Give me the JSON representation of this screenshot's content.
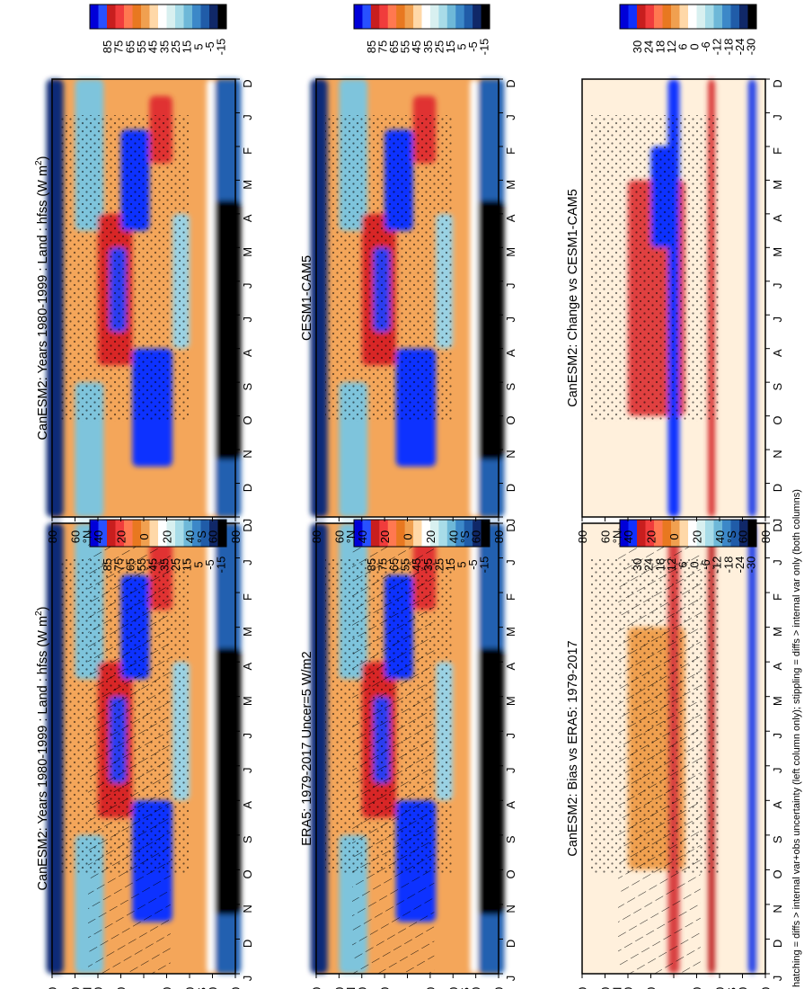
{
  "figure": {
    "footnote": "hatching = diffs > internal var+obs uncertainty (left column only); stippling = diffs > internal var only (both columns)",
    "rotation": "90 degrees clockwise (portrait page of landscape panels)"
  },
  "chart_data": [
    {
      "type": "heatmap",
      "title": "CanESM2: Years 1980-1999 : Land : hfss (W m²)",
      "title_main": "CanESM2: Years 1980-1999 : Land : hfss (W m",
      "title_sup": "2",
      "title_end": ")",
      "variable": "hfss",
      "units": "W m-2",
      "x": [
        "D",
        "J",
        "F",
        "M",
        "A",
        "M",
        "J",
        "J",
        "A",
        "S",
        "O",
        "N",
        "D",
        "J"
      ],
      "y_ticks": [
        "80",
        "60",
        "40",
        "20",
        "0",
        "20",
        "40",
        "60",
        "80"
      ],
      "y_hemi_labels": [
        "°N",
        "°S"
      ],
      "colorbar": {
        "ticks": [
          85,
          75,
          65,
          55,
          45,
          35,
          25,
          15,
          5,
          -5,
          -15
        ],
        "colors": [
          "#0000d8",
          "#2850ff",
          "#c81e1e",
          "#f03c3c",
          "#ff7850",
          "#e87820",
          "#f0a050",
          "#ffd8a8",
          "#ffffff",
          "#d8f0f0",
          "#a8dce8",
          "#6eb8d8",
          "#3c88c8",
          "#205ca8",
          "#102868",
          "#000000"
        ]
      },
      "overlays": [
        "hatching",
        "stippling"
      ]
    },
    {
      "type": "heatmap",
      "title": "CanESM2: Years 1980-1999 : Land : hfss (W m²)",
      "title_main": "CanESM2: Years 1980-1999 : Land : hfss (W m",
      "title_sup": "2",
      "title_end": ")",
      "variable": "hfss",
      "units": "W m-2",
      "x": [
        "D",
        "J",
        "F",
        "M",
        "A",
        "M",
        "J",
        "J",
        "A",
        "S",
        "O",
        "N",
        "D",
        "J"
      ],
      "y_ticks": [
        "80",
        "60",
        "40",
        "20",
        "0",
        "20",
        "40",
        "60",
        "80"
      ],
      "y_hemi_labels": [
        "°N",
        "°S"
      ],
      "colorbar": {
        "ticks": [
          85,
          75,
          65,
          55,
          45,
          35,
          25,
          15,
          5,
          -5,
          -15
        ]
      },
      "overlays": [
        "stippling"
      ]
    },
    {
      "type": "heatmap",
      "title": "ERA5: 1979-2017 Uncer=5 W/m2",
      "x": [
        "D",
        "J",
        "F",
        "M",
        "A",
        "M",
        "J",
        "J",
        "A",
        "S",
        "O",
        "N",
        "D",
        "J"
      ],
      "y_ticks": [
        "80",
        "60",
        "40",
        "20",
        "0",
        "20",
        "40",
        "60",
        "80"
      ],
      "y_hemi_labels": [
        "°N",
        "°S"
      ],
      "colorbar": {
        "ticks": [
          85,
          75,
          65,
          55,
          45,
          35,
          25,
          15,
          5,
          -5,
          -15
        ]
      },
      "overlays": [
        "hatching",
        "stippling"
      ]
    },
    {
      "type": "heatmap",
      "title": "CESM1-CAM5",
      "x": [
        "D",
        "J",
        "F",
        "M",
        "A",
        "M",
        "J",
        "J",
        "A",
        "S",
        "O",
        "N",
        "D",
        "J"
      ],
      "y_ticks": [
        "80",
        "60",
        "40",
        "20",
        "0",
        "20",
        "40",
        "60",
        "80"
      ],
      "y_hemi_labels": [
        "°N",
        "°S"
      ],
      "colorbar": {
        "ticks": [
          85,
          75,
          65,
          55,
          45,
          35,
          25,
          15,
          5,
          -5,
          -15
        ]
      },
      "overlays": [
        "stippling"
      ]
    },
    {
      "type": "heatmap",
      "title": "CanESM2: Bias vs ERA5: 1979-2017",
      "x": [
        "D",
        "J",
        "F",
        "M",
        "A",
        "M",
        "J",
        "J",
        "A",
        "S",
        "O",
        "N",
        "D",
        "J"
      ],
      "y_ticks": [
        "80",
        "60",
        "40",
        "20",
        "0",
        "20",
        "40",
        "60",
        "80"
      ],
      "y_hemi_labels": [
        "°N",
        "°S"
      ],
      "colorbar": {
        "ticks": [
          30,
          24,
          18,
          12,
          6,
          0,
          -6,
          -12,
          -18,
          -24,
          -30
        ]
      },
      "overlays": [
        "hatching",
        "stippling"
      ]
    },
    {
      "type": "heatmap",
      "title": "CanESM2: Change vs CESM1-CAM5",
      "x": [
        "D",
        "J",
        "F",
        "M",
        "A",
        "M",
        "J",
        "J",
        "A",
        "S",
        "O",
        "N",
        "D",
        "J"
      ],
      "y_ticks": [
        "80",
        "60",
        "40",
        "20",
        "0",
        "20",
        "40",
        "60",
        "80"
      ],
      "y_hemi_labels": [
        "°N",
        "°S"
      ],
      "colorbar": {
        "ticks": [
          30,
          24,
          18,
          12,
          6,
          0,
          -6,
          -12,
          -18,
          -24,
          -30
        ]
      },
      "overlays": [
        "stippling"
      ]
    }
  ]
}
